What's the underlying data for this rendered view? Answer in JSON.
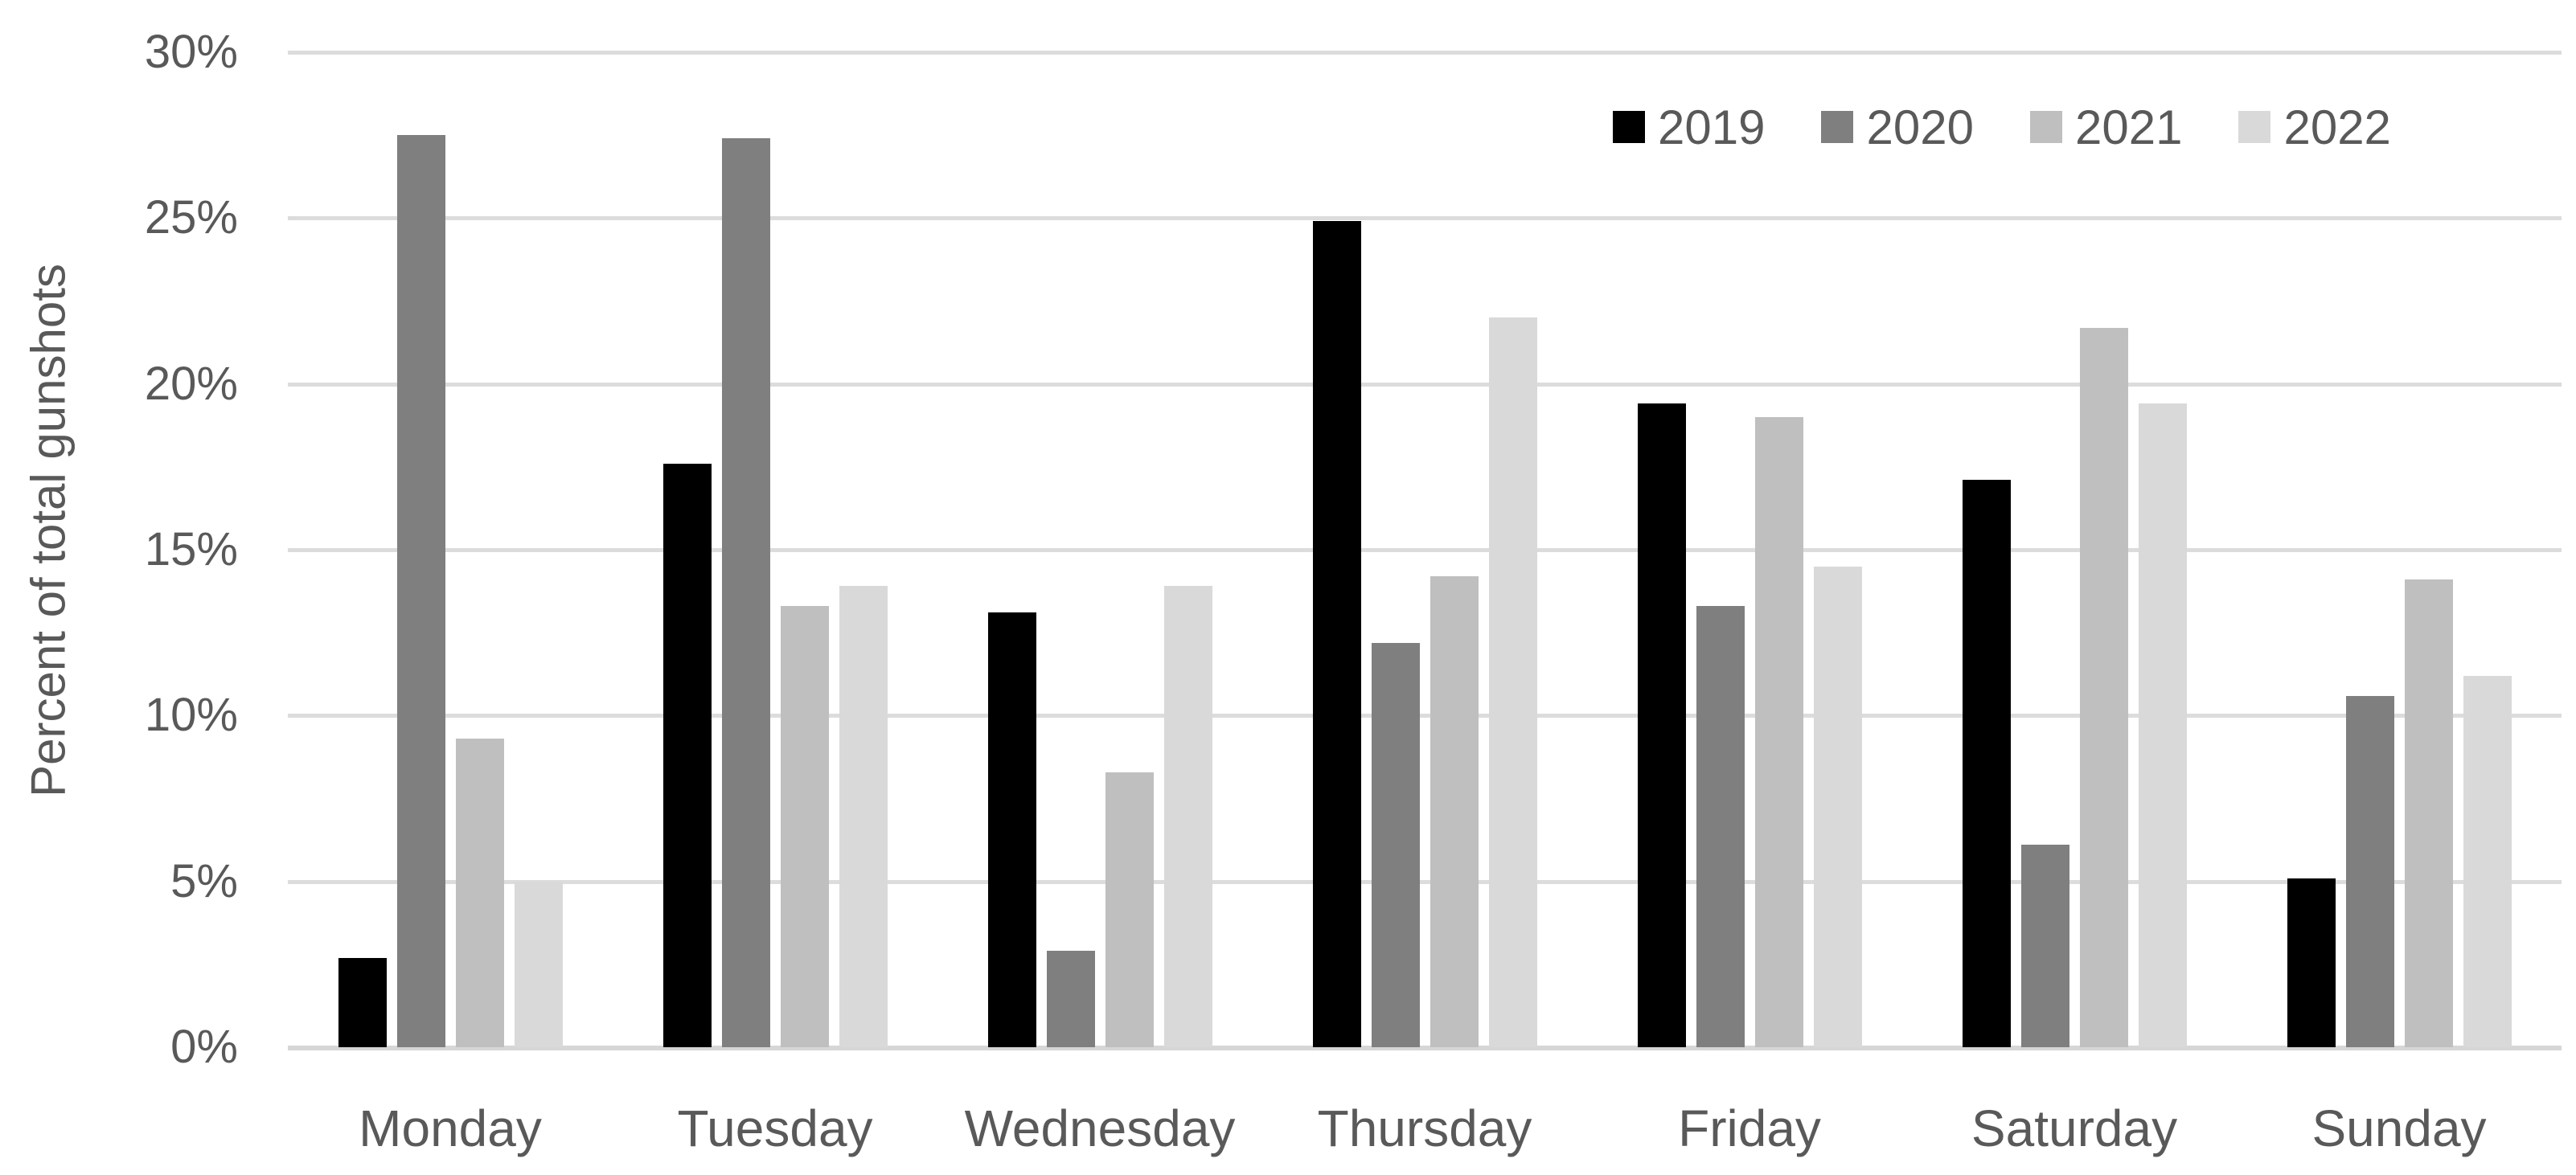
{
  "chart_data": {
    "type": "bar",
    "title": "",
    "xlabel": "",
    "ylabel": "Percent of total gunshots",
    "categories": [
      "Monday",
      "Tuesday",
      "Wednesday",
      "Thursday",
      "Friday",
      "Saturday",
      "Sunday"
    ],
    "series": [
      {
        "name": "2019",
        "color": "#000000",
        "values": [
          2.7,
          17.6,
          13.1,
          24.9,
          19.4,
          17.1,
          5.1
        ]
      },
      {
        "name": "2020",
        "color": "#7f7f7f",
        "values": [
          27.5,
          27.4,
          2.9,
          12.2,
          13.3,
          6.1,
          10.6
        ]
      },
      {
        "name": "2021",
        "color": "#bfbfbf",
        "values": [
          9.3,
          13.3,
          8.3,
          14.2,
          19.0,
          21.7,
          14.1
        ]
      },
      {
        "name": "2022",
        "color": "#d9d9d9",
        "values": [
          5.0,
          13.9,
          13.9,
          22.0,
          14.5,
          19.4,
          11.2
        ]
      }
    ],
    "ylim": [
      0,
      30
    ],
    "ytick_step": 5,
    "ytick_labels": [
      "0%",
      "5%",
      "10%",
      "15%",
      "20%",
      "25%",
      "30%"
    ],
    "grid": true,
    "legend_position": "top-right",
    "colors": {
      "background": "#ffffff",
      "gridline": "#dcdcdc",
      "axis_line": "#d6d6d6",
      "text": "#595959"
    }
  }
}
